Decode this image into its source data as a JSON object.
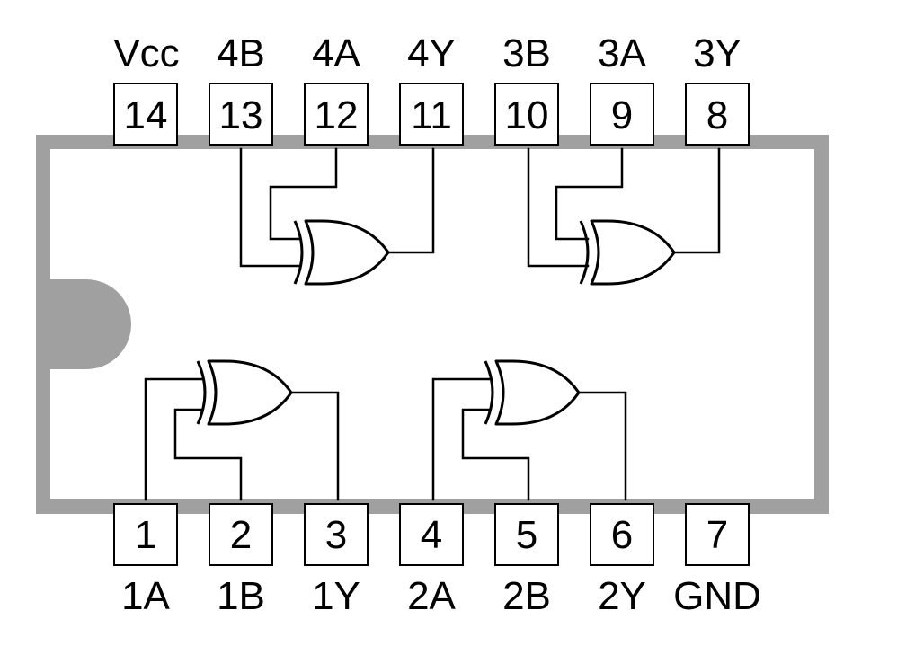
{
  "colors": {
    "package_border": "#a0a0a0",
    "package_body": "#ffffff",
    "notch": "#a0a0a0",
    "line": "#000000"
  },
  "top_pins": [
    {
      "number": "14",
      "label": "Vcc"
    },
    {
      "number": "13",
      "label": "4B"
    },
    {
      "number": "12",
      "label": "4A"
    },
    {
      "number": "11",
      "label": "4Y"
    },
    {
      "number": "10",
      "label": "3B"
    },
    {
      "number": "9",
      "label": "3A"
    },
    {
      "number": "8",
      "label": "3Y"
    }
  ],
  "bottom_pins": [
    {
      "number": "1",
      "label": "1A"
    },
    {
      "number": "2",
      "label": "1B"
    },
    {
      "number": "3",
      "label": "1Y"
    },
    {
      "number": "4",
      "label": "2A"
    },
    {
      "number": "5",
      "label": "2B"
    },
    {
      "number": "6",
      "label": "2Y"
    },
    {
      "number": "7",
      "label": "GND"
    }
  ],
  "gates": [
    {
      "name": "gate-1",
      "type": "XOR",
      "inputs": [
        "1A",
        "1B"
      ],
      "output": "1Y"
    },
    {
      "name": "gate-2",
      "type": "XOR",
      "inputs": [
        "2A",
        "2B"
      ],
      "output": "2Y"
    },
    {
      "name": "gate-3",
      "type": "XOR",
      "inputs": [
        "3A",
        "3B"
      ],
      "output": "3Y"
    },
    {
      "name": "gate-4",
      "type": "XOR",
      "inputs": [
        "4A",
        "4B"
      ],
      "output": "4Y"
    }
  ]
}
